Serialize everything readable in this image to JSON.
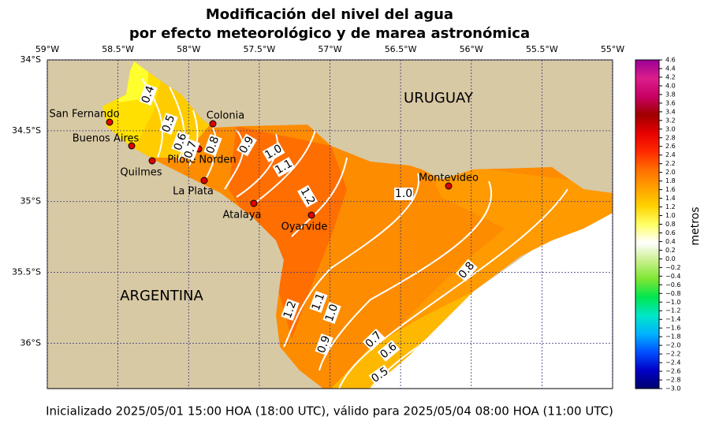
{
  "title": [
    "Modificación del nivel del agua",
    "por efecto meteorológico y de marea astronómica"
  ],
  "map": {
    "xlim": [
      -59,
      -55
    ],
    "ylim": [
      -36.32,
      -34
    ],
    "xticks": [
      {
        "value": -59,
        "label": "59°W"
      },
      {
        "value": -58.5,
        "label": "58.5°W"
      },
      {
        "value": -58,
        "label": "58°W"
      },
      {
        "value": -57.5,
        "label": "57.5°W"
      },
      {
        "value": -57,
        "label": "57°W"
      },
      {
        "value": -56.5,
        "label": "56.5°W"
      },
      {
        "value": -56,
        "label": "56°W"
      },
      {
        "value": -55.5,
        "label": "55.5°W"
      },
      {
        "value": -55,
        "label": "55°W"
      }
    ],
    "yticks": [
      {
        "value": -34,
        "label": "34°S"
      },
      {
        "value": -34.5,
        "label": "34.5°S"
      },
      {
        "value": -35,
        "label": "35°S"
      },
      {
        "value": -35.5,
        "label": "35.5°S"
      },
      {
        "value": -36,
        "label": "36°S"
      }
    ],
    "grid": true,
    "regions": [
      "URUGUAY",
      "ARGENTINA"
    ],
    "places": [
      "San Fernando",
      "Buenos Aires",
      "Colonia",
      "Pilote Norden",
      "Quilmes",
      "La Plata",
      "Atalaya",
      "Oyarvide",
      "Montevideo"
    ],
    "contour_labels": [
      "0.4",
      "0.5",
      "0.6",
      "0.7",
      "0.8",
      "0.9",
      "1.0",
      "1.1",
      "1.2",
      "1.0",
      "0.8",
      "1.2",
      "1.1",
      "1.0",
      "0.9",
      "0.7",
      "0.6",
      "0.5"
    ]
  },
  "colorbar": {
    "label": "metros",
    "lim": [
      -3,
      4.6
    ],
    "colors": [
      "#00006e",
      "#0000c8",
      "#0050ff",
      "#00b4ff",
      "#00e6c8",
      "#00e650",
      "#7de632",
      "#c8f08c",
      "#ffffff",
      "#ffff64",
      "#ffd200",
      "#ffa000",
      "#ff6e00",
      "#ff2800",
      "#e60000",
      "#a00000",
      "#c80064",
      "#dc1e8c",
      "#9b0096"
    ],
    "ticks": [
      {
        "value": -3,
        "label": "−3.0"
      },
      {
        "value": -2.8,
        "label": "−2.8"
      },
      {
        "value": -2.6,
        "label": "−2.6"
      },
      {
        "value": -2.4,
        "label": "−2.4"
      },
      {
        "value": -2.2,
        "label": "−2.2"
      },
      {
        "value": -2,
        "label": "−2.0"
      },
      {
        "value": -1.8,
        "label": "−1.8"
      },
      {
        "value": -1.6,
        "label": "−1.6"
      },
      {
        "value": -1.4,
        "label": "−1.4"
      },
      {
        "value": -1.2,
        "label": "−1.2"
      },
      {
        "value": -1,
        "label": "−1.0"
      },
      {
        "value": -0.8,
        "label": "−0.8"
      },
      {
        "value": -0.6,
        "label": "−0.6"
      },
      {
        "value": -0.4,
        "label": "−0.4"
      },
      {
        "value": -0.2,
        "label": "−0.2"
      },
      {
        "value": 0,
        "label": "0.0"
      },
      0.2,
      0.4,
      0.6,
      0.8,
      {
        "value": 1,
        "label": "1.0"
      },
      1.2,
      1.4,
      1.6,
      1.8,
      {
        "value": 2,
        "label": "2.0"
      },
      2.2,
      2.4,
      2.6,
      2.8,
      {
        "value": 3,
        "label": "3.0"
      },
      3.2,
      3.4,
      3.6,
      3.8,
      {
        "value": 4,
        "label": "4.0"
      },
      4.2,
      4.4,
      4.6
    ]
  },
  "footer": "Inicializado 2025/05/01 15:00 HOA (18:00 UTC), válido para 2025/05/04 08:00 HOA (11:00 UTC)"
}
